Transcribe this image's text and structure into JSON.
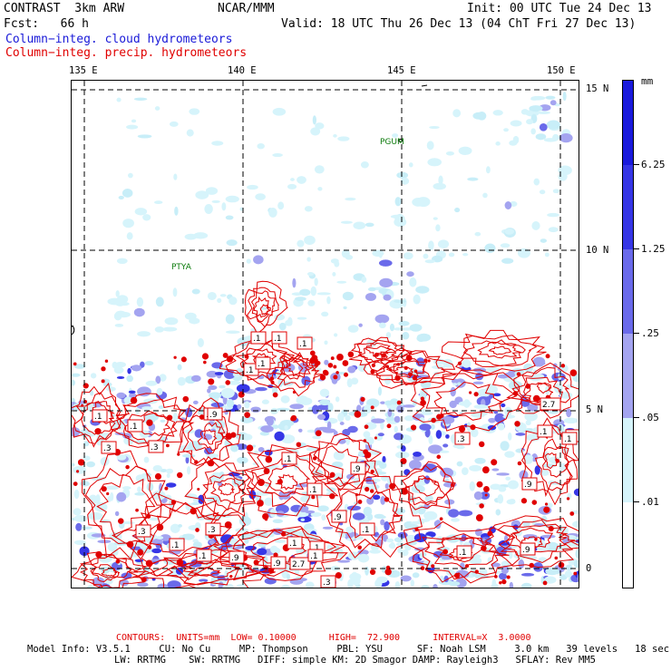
{
  "header": {
    "model_name": "CONTRAST  3km ARW",
    "org": "NCAR/MMM",
    "init": "Init: 00 UTC Tue 24 Dec 13",
    "fcst": "Fcst:   66 h",
    "valid": "Valid: 18 UTC Thu 26 Dec 13 (04 ChT Fri 27 Dec 13)",
    "field_cloud": "Column−integ. cloud hydrometeors",
    "field_precip": "Column−integ. precip. hydrometeors"
  },
  "colors": {
    "cloud_field": "#1a1ad8",
    "precip_contour": "#e00000",
    "grid": "#000000"
  },
  "axes": {
    "lon_labels": [
      "135 E",
      "140 E",
      "145 E",
      "150 E"
    ],
    "lat_labels": [
      "15 N",
      "10 N",
      "5 N",
      "0"
    ]
  },
  "map": {
    "cities": [
      "PGUM",
      "PTYA"
    ]
  },
  "colorbar": {
    "unit": "mm",
    "labels": [
      "6.25",
      "1.25",
      ".25",
      ".05",
      ".01"
    ],
    "colors": [
      "#1a1adc",
      "#2e2ee6",
      "#4a4ae8",
      "#7a7aec",
      "#a8a8f2",
      "#d6f4fb",
      "#ffffff"
    ]
  },
  "contour_labels": [
    ".1",
    ".1",
    ".1",
    ".1",
    ".1",
    ".9",
    ".9",
    ".1",
    ".3",
    ".3",
    ".1",
    ".9",
    ".1",
    ".9",
    "2.7",
    ".1",
    ".3",
    ".3",
    ".9",
    ".1",
    ".1",
    ".1",
    ".1",
    ".3",
    ".1",
    ".9",
    ".9",
    "2.7",
    ".3",
    ".1",
    ".9",
    ".3",
    ".1",
    ".1",
    ".1"
  ],
  "footer": {
    "contours": "CONTOURS:  UNITS=mm  LOW= 0.10000      HIGH=  72.900      INTERVAL=X  3.0000",
    "info1": "Model Info: V3.5.1     CU: No Cu     MP: Thompson     PBL: YSU      SF: Noah LSM     3.0 km   39 levels   18 sec",
    "info2": "LW: RRTMG    SW: RRTMG   DIFF: simple KM: 2D Smagor DAMP: Rayleigh3   SFLAY: Rev MM5"
  }
}
